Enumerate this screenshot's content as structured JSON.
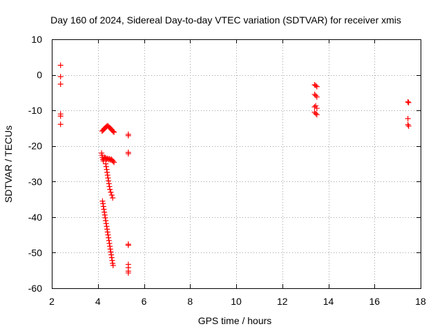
{
  "chart_data": {
    "type": "scatter",
    "title": "Day 160 of 2024, Sidereal Day-to-day VTEC variation (SDTVAR) for receiver xmis",
    "xlabel": "GPS time / hours",
    "ylabel": "SDTVAR / TECUs",
    "xlim": [
      2,
      18
    ],
    "ylim": [
      -60,
      10
    ],
    "grid": true,
    "x_ticks": [
      2,
      4,
      6,
      8,
      10,
      12,
      14,
      16,
      18
    ],
    "y_ticks": [
      10,
      0,
      -10,
      -20,
      -30,
      -40,
      -50,
      -60
    ],
    "x_tick_labels": [
      "2",
      "4",
      "6",
      "8",
      "10",
      "12",
      "14",
      "16",
      "18"
    ],
    "y_tick_labels": [
      "10",
      "0",
      "-10",
      "-20",
      "-30",
      "-40",
      "-50",
      "-60"
    ],
    "marker": "+",
    "series": [
      {
        "name": "SDTVAR",
        "color": "#ff0000",
        "points": [
          [
            2.38,
            2.7
          ],
          [
            2.38,
            -0.5
          ],
          [
            2.38,
            -2.6
          ],
          [
            2.38,
            -11.0
          ],
          [
            2.38,
            -11.6
          ],
          [
            2.38,
            -13.9
          ],
          [
            4.18,
            -15.8
          ],
          [
            4.22,
            -15.6
          ],
          [
            4.26,
            -15.3
          ],
          [
            4.3,
            -15.0
          ],
          [
            4.34,
            -14.7
          ],
          [
            4.38,
            -14.5
          ],
          [
            4.42,
            -14.3
          ],
          [
            4.46,
            -14.5
          ],
          [
            4.5,
            -14.8
          ],
          [
            4.54,
            -15.0
          ],
          [
            4.58,
            -15.3
          ],
          [
            4.62,
            -15.6
          ],
          [
            4.66,
            -15.9
          ],
          [
            4.7,
            -16.1
          ],
          [
            4.16,
            -22.0
          ],
          [
            4.18,
            -22.6
          ],
          [
            4.2,
            -23.2
          ],
          [
            4.22,
            -23.8
          ],
          [
            4.24,
            -24.2
          ],
          [
            4.26,
            -23.6
          ],
          [
            4.3,
            -23.2
          ],
          [
            4.34,
            -23.4
          ],
          [
            4.38,
            -23.7
          ],
          [
            4.42,
            -23.5
          ],
          [
            4.46,
            -23.8
          ],
          [
            4.5,
            -23.6
          ],
          [
            4.54,
            -23.9
          ],
          [
            4.58,
            -23.7
          ],
          [
            4.62,
            -24.0
          ],
          [
            4.66,
            -24.3
          ],
          [
            4.7,
            -24.6
          ],
          [
            4.34,
            -25.0
          ],
          [
            4.36,
            -25.8
          ],
          [
            4.38,
            -26.6
          ],
          [
            4.4,
            -27.4
          ],
          [
            4.42,
            -28.2
          ],
          [
            4.44,
            -29.0
          ],
          [
            4.46,
            -29.8
          ],
          [
            4.48,
            -30.6
          ],
          [
            4.5,
            -31.4
          ],
          [
            4.52,
            -32.2
          ],
          [
            4.56,
            -33.0
          ],
          [
            4.6,
            -33.8
          ],
          [
            4.64,
            -34.6
          ],
          [
            4.2,
            -35.5
          ],
          [
            4.22,
            -36.2
          ],
          [
            4.24,
            -37.0
          ],
          [
            4.26,
            -37.8
          ],
          [
            4.28,
            -38.6
          ],
          [
            4.3,
            -39.4
          ],
          [
            4.32,
            -40.2
          ],
          [
            4.34,
            -41.0
          ],
          [
            4.36,
            -41.8
          ],
          [
            4.38,
            -42.6
          ],
          [
            4.4,
            -43.4
          ],
          [
            4.42,
            -44.2
          ],
          [
            4.44,
            -45.0
          ],
          [
            4.46,
            -45.8
          ],
          [
            4.48,
            -46.6
          ],
          [
            4.5,
            -47.4
          ],
          [
            4.52,
            -48.2
          ],
          [
            4.54,
            -49.0
          ],
          [
            4.56,
            -49.8
          ],
          [
            4.58,
            -50.6
          ],
          [
            4.6,
            -51.4
          ],
          [
            4.62,
            -52.2
          ],
          [
            4.64,
            -53.0
          ],
          [
            4.66,
            -53.6
          ],
          [
            5.32,
            -16.7
          ],
          [
            5.32,
            -17.1
          ],
          [
            5.32,
            -21.8
          ],
          [
            5.32,
            -22.2
          ],
          [
            5.32,
            -47.6
          ],
          [
            5.32,
            -47.9
          ],
          [
            5.32,
            -53.3
          ],
          [
            5.32,
            -54.2
          ],
          [
            5.32,
            -55.2
          ],
          [
            5.32,
            -55.7
          ],
          [
            13.4,
            -2.8
          ],
          [
            13.45,
            -3.0
          ],
          [
            13.5,
            -3.3
          ],
          [
            13.4,
            -5.5
          ],
          [
            13.45,
            -5.8
          ],
          [
            13.5,
            -6.2
          ],
          [
            13.4,
            -9.0
          ],
          [
            13.45,
            -8.7
          ],
          [
            13.5,
            -9.4
          ],
          [
            13.4,
            -10.5
          ],
          [
            13.45,
            -10.9
          ],
          [
            13.5,
            -11.2
          ],
          [
            17.45,
            -7.6
          ],
          [
            17.48,
            -7.8
          ],
          [
            17.45,
            -12.3
          ],
          [
            17.45,
            -14.0
          ],
          [
            17.48,
            -14.4
          ]
        ]
      }
    ]
  }
}
